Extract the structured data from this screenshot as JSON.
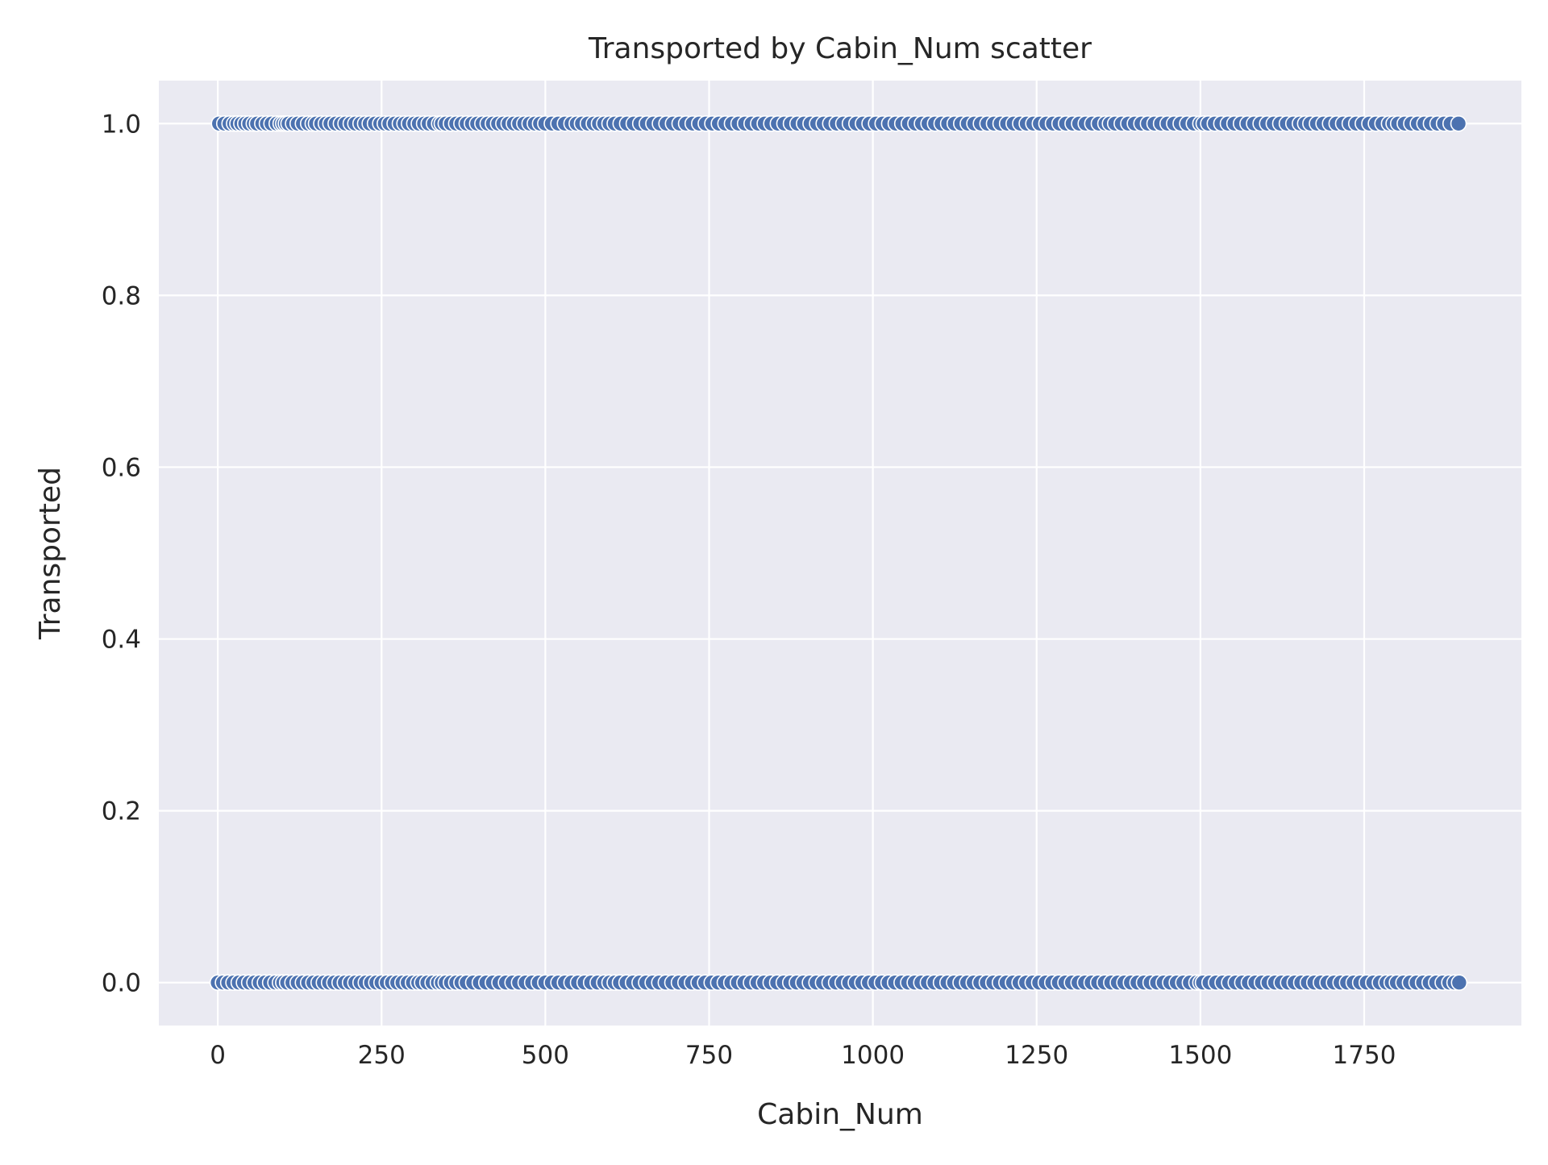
{
  "chart_data": {
    "type": "scatter",
    "title": "Transported by Cabin_Num scatter",
    "xlabel": "Cabin_Num",
    "ylabel": "Transported",
    "xlim": [
      -90,
      1990
    ],
    "ylim": [
      -0.05,
      1.05
    ],
    "x_ticks": [
      0,
      250,
      500,
      750,
      1000,
      1250,
      1500,
      1750
    ],
    "x_tick_labels": [
      "0",
      "250",
      "500",
      "750",
      "1000",
      "1250",
      "1500",
      "1750"
    ],
    "y_ticks": [
      0.0,
      0.2,
      0.4,
      0.6,
      0.8,
      1.0
    ],
    "y_tick_labels": [
      "0.0",
      "0.2",
      "0.4",
      "0.6",
      "0.8",
      "1.0"
    ],
    "grid": true,
    "colors": {
      "point": "#4c72b0",
      "point_edge": "#ffffff",
      "plot_background": "#eaeaf2",
      "grid": "#ffffff"
    },
    "series": [
      {
        "y": 1,
        "x": [
          2,
          10,
          18,
          25,
          30,
          36,
          42,
          48,
          55,
          60,
          68,
          75,
          82,
          90,
          96,
          100,
          104,
          108,
          115,
          122,
          130,
          138,
          145,
          150,
          158,
          165,
          172,
          180,
          188,
          195,
          203,
          210,
          218,
          225,
          232,
          240,
          248,
          255,
          262,
          270,
          278,
          285,
          292,
          300,
          307,
          315,
          322,
          330,
          338,
          342,
          348,
          356,
          364,
          372,
          380,
          388,
          396,
          404,
          412,
          420,
          428,
          436,
          444,
          452,
          460,
          468,
          476,
          484,
          492,
          500,
          510,
          520,
          530,
          540,
          548,
          556,
          565,
          574,
          582,
          590,
          598,
          606,
          615,
          625,
          635,
          645,
          655,
          665,
          675,
          685,
          695,
          705,
          715,
          725,
          735,
          745,
          755,
          765,
          775,
          785,
          795,
          805,
          815,
          825,
          835,
          845,
          855,
          865,
          875,
          885,
          895,
          905,
          915,
          925,
          935,
          945,
          955,
          965,
          975,
          985,
          995,
          1005,
          1015,
          1025,
          1035,
          1045,
          1055,
          1065,
          1075,
          1085,
          1095,
          1105,
          1115,
          1125,
          1135,
          1145,
          1155,
          1165,
          1175,
          1185,
          1195,
          1205,
          1215,
          1225,
          1235,
          1245,
          1255,
          1265,
          1275,
          1285,
          1295,
          1305,
          1315,
          1325,
          1335,
          1345,
          1355,
          1362,
          1370,
          1380,
          1390,
          1400,
          1410,
          1420,
          1430,
          1440,
          1450,
          1460,
          1470,
          1480,
          1490,
          1500,
          1505,
          1512,
          1522,
          1532,
          1542,
          1552,
          1562,
          1572,
          1582,
          1592,
          1602,
          1612,
          1622,
          1632,
          1642,
          1652,
          1660,
          1668,
          1678,
          1688,
          1698,
          1708,
          1718,
          1728,
          1738,
          1748,
          1758,
          1768,
          1778,
          1788,
          1795,
          1802,
          1812,
          1822,
          1832,
          1842,
          1852,
          1862,
          1872,
          1882,
          1894
        ]
      },
      {
        "y": 0,
        "x": [
          0,
          8,
          16,
          24,
          32,
          40,
          48,
          56,
          64,
          72,
          80,
          88,
          95,
          100,
          106,
          114,
          122,
          130,
          138,
          146,
          154,
          162,
          170,
          178,
          186,
          194,
          202,
          210,
          218,
          226,
          234,
          242,
          250,
          258,
          266,
          274,
          282,
          290,
          298,
          306,
          312,
          320,
          328,
          336,
          342,
          348,
          356,
          364,
          372,
          380,
          390,
          400,
          410,
          420,
          430,
          440,
          450,
          460,
          470,
          480,
          490,
          500,
          510,
          520,
          530,
          540,
          550,
          560,
          570,
          580,
          590,
          598,
          606,
          614,
          624,
          634,
          644,
          654,
          664,
          674,
          684,
          694,
          704,
          714,
          724,
          734,
          744,
          754,
          764,
          774,
          784,
          794,
          804,
          814,
          824,
          834,
          844,
          854,
          864,
          874,
          884,
          894,
          904,
          914,
          924,
          934,
          944,
          954,
          964,
          974,
          984,
          994,
          1004,
          1014,
          1024,
          1034,
          1044,
          1054,
          1064,
          1074,
          1084,
          1094,
          1104,
          1114,
          1124,
          1134,
          1144,
          1154,
          1164,
          1174,
          1184,
          1194,
          1204,
          1214,
          1224,
          1234,
          1244,
          1254,
          1264,
          1274,
          1284,
          1294,
          1304,
          1314,
          1324,
          1334,
          1344,
          1354,
          1364,
          1374,
          1384,
          1394,
          1404,
          1414,
          1424,
          1434,
          1444,
          1454,
          1464,
          1474,
          1484,
          1494,
          1500,
          1504,
          1514,
          1524,
          1534,
          1544,
          1554,
          1564,
          1574,
          1584,
          1594,
          1604,
          1614,
          1624,
          1634,
          1644,
          1654,
          1664,
          1674,
          1684,
          1694,
          1704,
          1714,
          1724,
          1734,
          1744,
          1754,
          1764,
          1774,
          1784,
          1792,
          1800,
          1810,
          1820,
          1830,
          1840,
          1850,
          1860,
          1870,
          1880,
          1888,
          1895
        ]
      }
    ]
  }
}
